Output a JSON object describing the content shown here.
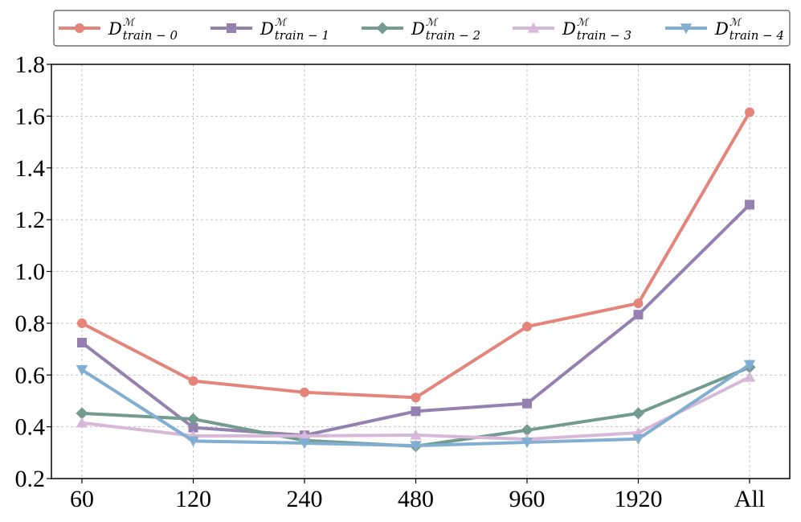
{
  "chart_data": {
    "type": "line",
    "title": "",
    "xlabel": "",
    "ylabel": "",
    "categories": [
      "60",
      "120",
      "240",
      "480",
      "960",
      "1920",
      "All"
    ],
    "ylim": [
      0.2,
      1.8
    ],
    "yticks": [
      "0.2",
      "0.4",
      "0.6",
      "0.8",
      "1.0",
      "1.2",
      "1.4",
      "1.6",
      "1.8"
    ],
    "grid": true,
    "legend_position": "top",
    "series": [
      {
        "name": "D",
        "name_sub": "train − 0",
        "name_sup": "ℳ",
        "color": "#E4847A",
        "marker": "circle",
        "values": [
          0.8,
          0.577,
          0.533,
          0.513,
          0.787,
          0.877,
          1.615
        ]
      },
      {
        "name": "D",
        "name_sub": "train − 1",
        "name_sup": "ℳ",
        "color": "#9481B0",
        "marker": "square",
        "values": [
          0.725,
          0.397,
          0.367,
          0.46,
          0.49,
          0.833,
          1.258
        ]
      },
      {
        "name": "D",
        "name_sub": "train − 2",
        "name_sup": "ℳ",
        "color": "#739B90",
        "marker": "diamond",
        "values": [
          0.452,
          0.43,
          0.347,
          0.325,
          0.387,
          0.452,
          0.63
        ]
      },
      {
        "name": "D",
        "name_sub": "train − 3",
        "name_sup": "ℳ",
        "color": "#D8B8D8",
        "marker": "triangle-up",
        "values": [
          0.415,
          0.365,
          0.365,
          0.368,
          0.352,
          0.377,
          0.592
        ]
      },
      {
        "name": "D",
        "name_sub": "train − 4",
        "name_sup": "ℳ",
        "color": "#82AED2",
        "marker": "triangle-down",
        "values": [
          0.62,
          0.345,
          0.337,
          0.327,
          0.34,
          0.353,
          0.64
        ]
      }
    ]
  }
}
